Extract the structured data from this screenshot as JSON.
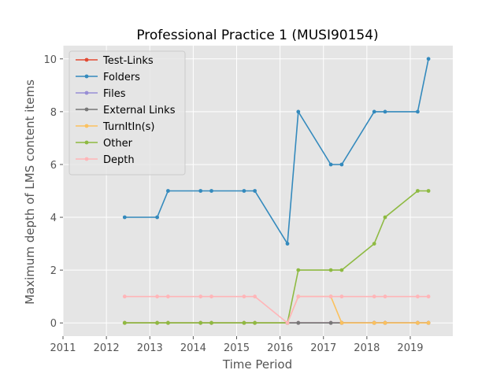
{
  "chart_data": {
    "type": "line",
    "title": "Professional Practice 1 (MUSI90154)",
    "xlabel": "Time Period",
    "ylabel": "Maximum depth of LMS content items",
    "xlim": [
      2011.0,
      2019.98
    ],
    "ylim": [
      -0.5,
      10.5
    ],
    "x_ticks": [
      2011,
      2012,
      2013,
      2014,
      2015,
      2016,
      2017,
      2018,
      2019
    ],
    "y_ticks": [
      0,
      2,
      4,
      6,
      8,
      10
    ],
    "grid": true,
    "legend_position": "upper-left",
    "background_color": "#e5e5e5",
    "x": [
      2012.42,
      2013.17,
      2013.42,
      2014.17,
      2014.42,
      2015.17,
      2015.42,
      2016.17,
      2016.42,
      2017.17,
      2017.42,
      2018.17,
      2018.42,
      2019.17,
      2019.42
    ],
    "series": [
      {
        "name": "Test-Links",
        "color": "#e24a33",
        "values": [
          0,
          0,
          0,
          0,
          0,
          0,
          0,
          0,
          0,
          0,
          0,
          0,
          0,
          0,
          0
        ]
      },
      {
        "name": "Folders",
        "color": "#348abd",
        "values": [
          4,
          4,
          5,
          5,
          5,
          5,
          5,
          3,
          8,
          6,
          6,
          8,
          8,
          8,
          10
        ]
      },
      {
        "name": "Files",
        "color": "#988ed5",
        "values": [
          0,
          0,
          0,
          0,
          0,
          0,
          0,
          0,
          0,
          0,
          0,
          0,
          0,
          0,
          0
        ]
      },
      {
        "name": "External Links",
        "color": "#777777",
        "values": [
          0,
          0,
          0,
          0,
          0,
          0,
          0,
          0,
          0,
          0,
          0,
          0,
          0,
          0,
          0
        ]
      },
      {
        "name": "TurnItIn(s)",
        "color": "#fbc15e",
        "values": [
          0,
          0,
          0,
          0,
          0,
          0,
          0,
          0,
          1,
          1,
          0,
          0,
          0,
          0,
          0
        ]
      },
      {
        "name": "Other",
        "color": "#8eba42",
        "values": [
          0,
          0,
          0,
          0,
          0,
          0,
          0,
          0,
          2,
          2,
          2,
          3,
          4,
          5,
          5
        ]
      },
      {
        "name": "Depth",
        "color": "#ffb5b8",
        "values": [
          1,
          1,
          1,
          1,
          1,
          1,
          1,
          0,
          1,
          1,
          1,
          1,
          1,
          1,
          1
        ]
      }
    ]
  }
}
